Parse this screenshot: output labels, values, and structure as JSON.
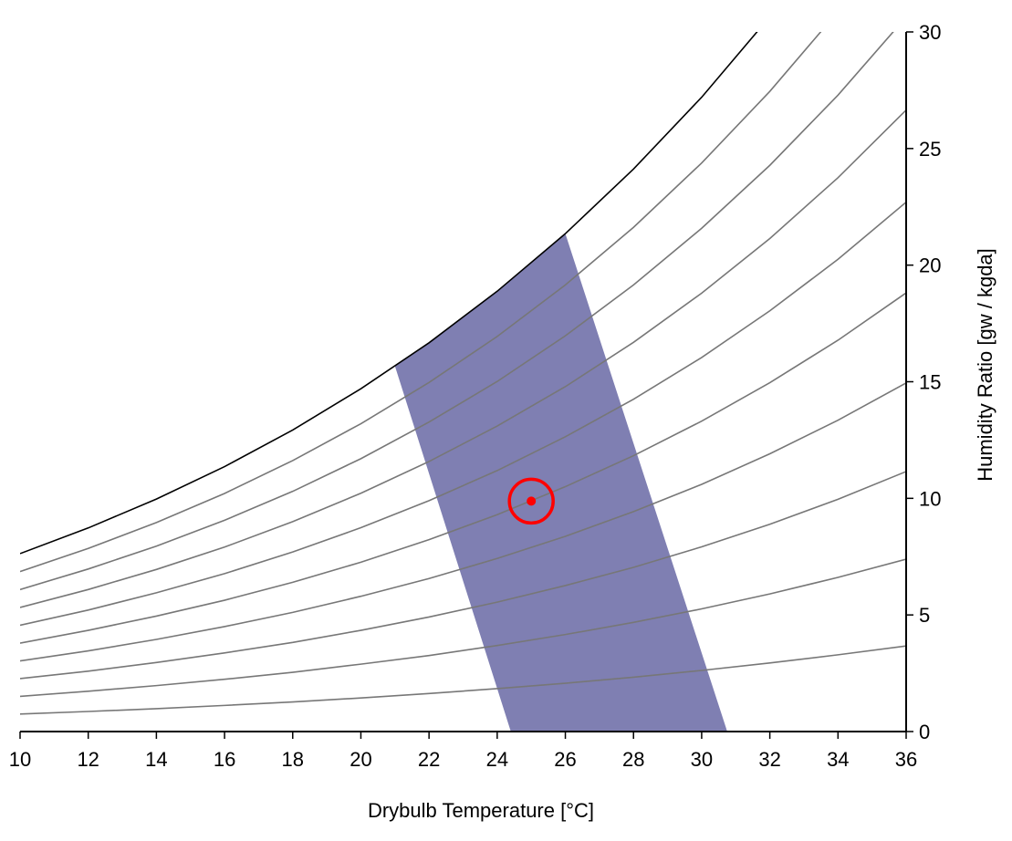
{
  "chart_data": {
    "type": "line",
    "x_label": "Drybulb Temperature [°C]",
    "y_label": "Humidity Ratio [gw / kgda]",
    "y_axis_side": "right",
    "xlim": [
      10,
      36
    ],
    "ylim": [
      0,
      30
    ],
    "xticks": [
      10,
      12,
      14,
      16,
      18,
      20,
      22,
      24,
      26,
      28,
      30,
      32,
      34,
      36
    ],
    "yticks": [
      0,
      5,
      10,
      15,
      20,
      25,
      30
    ],
    "x": [
      10,
      12,
      14,
      16,
      18,
      20,
      22,
      24,
      26,
      28,
      30,
      32,
      34,
      36
    ],
    "series": [
      {
        "color": "#000000",
        "values": [
          7.63,
          8.73,
          9.97,
          11.36,
          12.93,
          14.7,
          16.67,
          18.88,
          21.35,
          24.12,
          27.2,
          30.65,
          null,
          null
        ]
      },
      {
        "color": "#777777",
        "values": [
          6.86,
          7.85,
          8.96,
          10.21,
          11.62,
          13.2,
          14.97,
          16.94,
          19.15,
          21.62,
          24.38,
          27.45,
          30.87,
          null
        ]
      },
      {
        "color": "#777777",
        "values": [
          6.09,
          6.97,
          7.95,
          9.06,
          10.3,
          11.7,
          13.27,
          15.01,
          16.97,
          19.15,
          21.58,
          24.28,
          27.29,
          30.64
        ]
      },
      {
        "color": "#777777",
        "values": [
          5.32,
          6.09,
          6.95,
          7.91,
          9.0,
          10.22,
          11.58,
          13.1,
          14.79,
          16.69,
          18.8,
          21.14,
          23.75,
          26.65
        ]
      },
      {
        "color": "#777777",
        "values": [
          4.56,
          5.21,
          5.95,
          6.77,
          7.7,
          8.74,
          9.9,
          11.19,
          12.64,
          14.25,
          16.04,
          18.04,
          20.25,
          22.7
        ]
      },
      {
        "color": "#777777",
        "values": [
          3.79,
          4.34,
          4.95,
          5.63,
          6.4,
          7.26,
          8.23,
          9.3,
          10.5,
          11.83,
          13.31,
          14.96,
          16.78,
          18.81
        ]
      },
      {
        "color": "#777777",
        "values": [
          3.03,
          3.46,
          3.95,
          4.5,
          5.11,
          5.8,
          6.56,
          7.42,
          8.37,
          9.43,
          10.6,
          11.91,
          13.35,
          14.95
        ]
      },
      {
        "color": "#777777",
        "values": [
          2.27,
          2.59,
          2.96,
          3.37,
          3.82,
          4.34,
          4.91,
          5.55,
          6.26,
          7.04,
          7.92,
          8.89,
          9.96,
          11.15
        ]
      },
      {
        "color": "#777777",
        "values": [
          1.51,
          1.73,
          1.97,
          2.24,
          2.54,
          2.89,
          3.26,
          3.69,
          4.16,
          4.68,
          5.26,
          5.9,
          6.61,
          7.39
        ]
      },
      {
        "color": "#777777",
        "values": [
          0.75,
          0.86,
          0.98,
          1.12,
          1.27,
          1.44,
          1.63,
          1.84,
          2.07,
          2.33,
          2.62,
          2.94,
          3.29,
          3.67
        ]
      }
    ],
    "comfort_zone": {
      "color": "#7f7fb2",
      "x": [
        24.4,
        21.0,
        22,
        24,
        26.0,
        30.75
      ],
      "values": [
        0,
        15.67,
        16.67,
        18.88,
        21.35,
        0
      ]
    },
    "state_point": {
      "color": "#ff0000",
      "x": [
        25
      ],
      "values": [
        9.88
      ]
    }
  }
}
